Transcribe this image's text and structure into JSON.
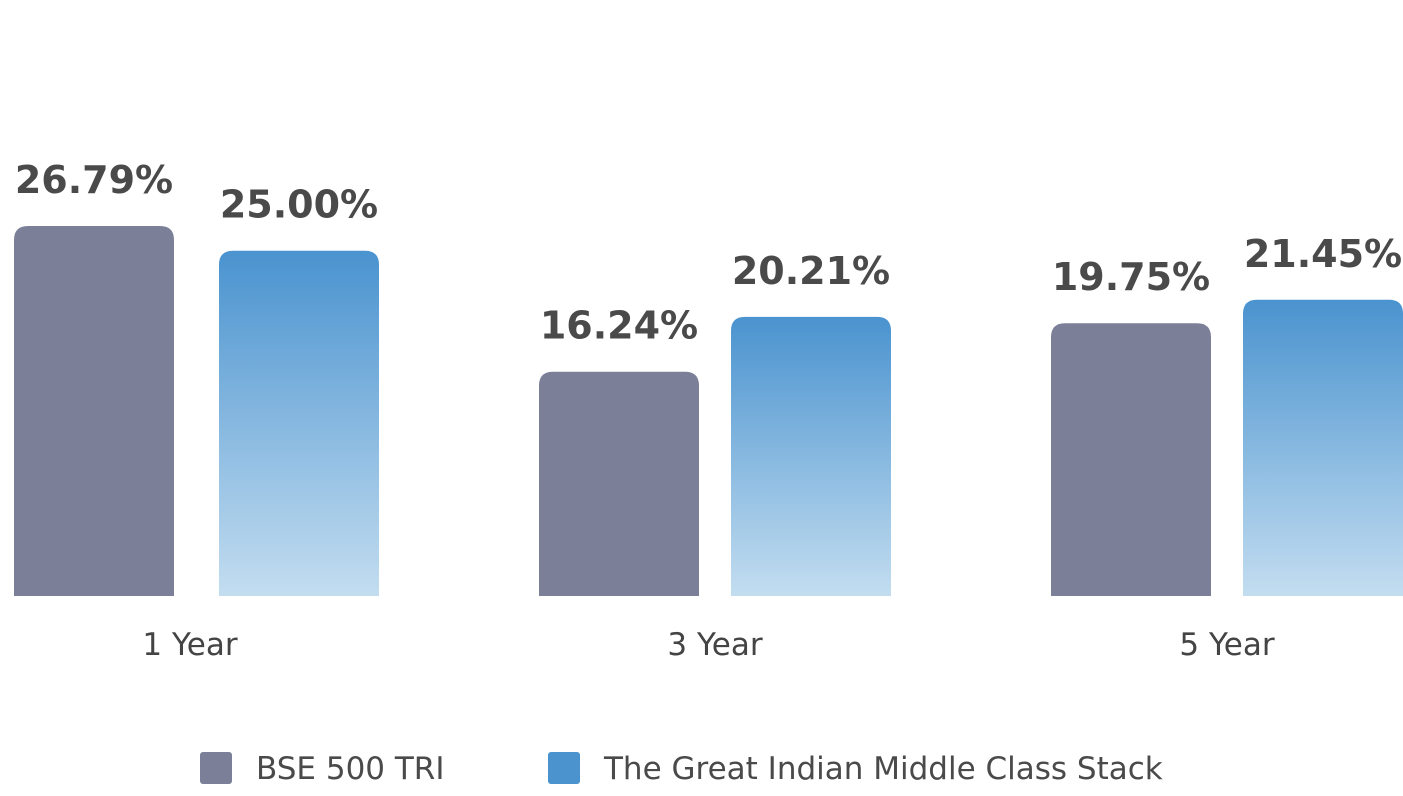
{
  "chart_data": {
    "type": "bar",
    "title": "",
    "xlabel": "",
    "ylabel": "",
    "categories": [
      "1 Year",
      "3 Year",
      "5 Year"
    ],
    "series": [
      {
        "name": "BSE 500 TRI",
        "values": [
          26.79,
          16.24,
          19.75
        ],
        "labels": [
          "26.79%",
          "16.24%",
          "19.75%"
        ],
        "color": "#7b7f98"
      },
      {
        "name": "The Great Indian Middle Class Stack",
        "values": [
          25.0,
          20.21,
          21.45
        ],
        "labels": [
          "25.00%",
          "20.21%",
          "21.45%"
        ],
        "color_top": "#4a93cf",
        "color_bottom": "#c3ddf0",
        "legend_color": "#4a93cf"
      }
    ],
    "ylim": [
      0,
      26.79
    ],
    "grid": false,
    "legend_position": "bottom"
  }
}
